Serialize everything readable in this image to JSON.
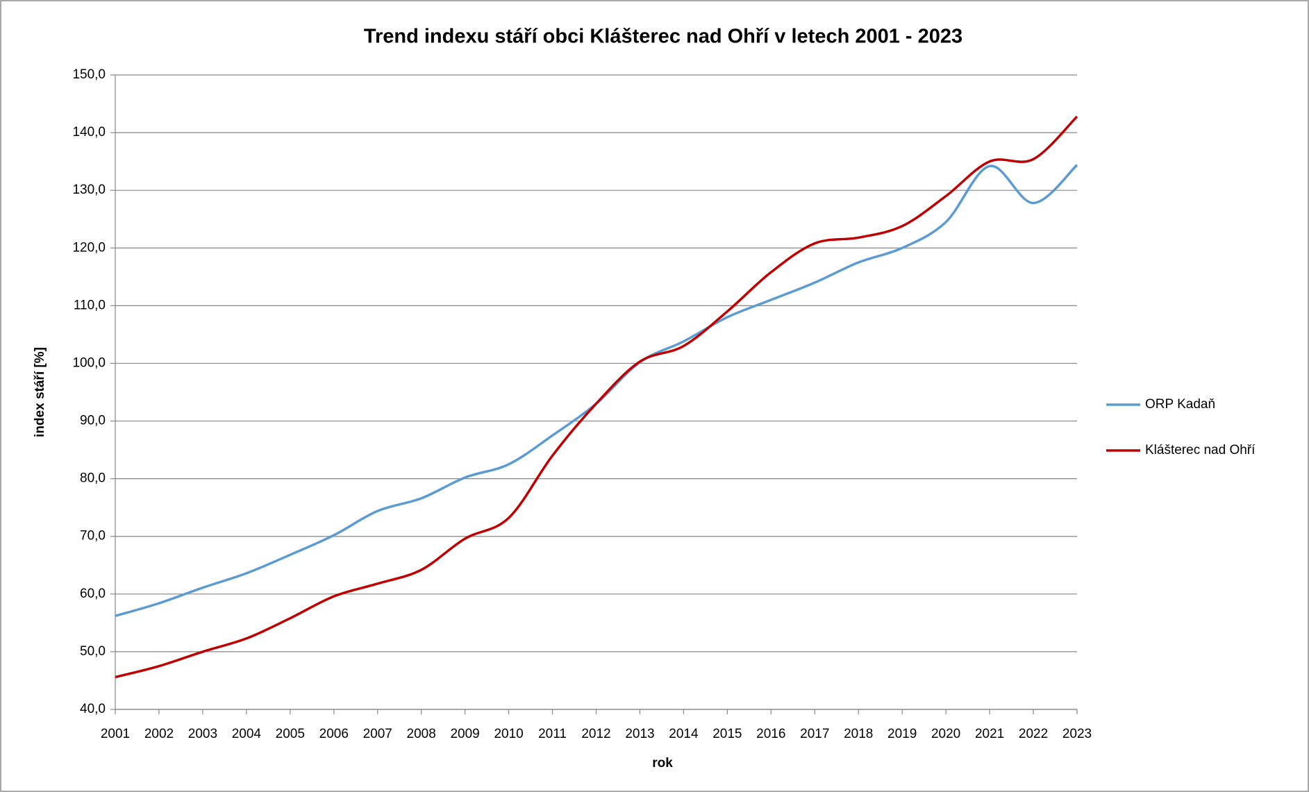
{
  "chart_data": {
    "type": "line",
    "title": "Trend indexu stáří obci Klášterec nad Ohří v letech 2001 - 2023",
    "x_label": "rok",
    "y_label": "index stáří [%]",
    "categories": [
      "2001",
      "2002",
      "2003",
      "2004",
      "2005",
      "2006",
      "2007",
      "2008",
      "2009",
      "2010",
      "2011",
      "2012",
      "2013",
      "2014",
      "2015",
      "2016",
      "2017",
      "2018",
      "2019",
      "2020",
      "2021",
      "2022",
      "2023"
    ],
    "series": [
      {
        "name": "ORP Kadaň",
        "color": "#5b9bd5",
        "values": [
          56.2,
          58.4,
          61.1,
          63.6,
          66.8,
          70.2,
          74.4,
          76.6,
          80.2,
          82.5,
          87.5,
          93.0,
          100.2,
          103.8,
          108.0,
          111.0,
          114.0,
          117.5,
          120.0,
          124.5,
          134.2,
          127.8,
          134.4
        ]
      },
      {
        "name": "Klášterec nad Ohří",
        "color": "#c00000",
        "values": [
          45.6,
          47.5,
          50.0,
          52.3,
          55.8,
          59.6,
          61.8,
          64.2,
          69.6,
          73.2,
          84.0,
          93.0,
          100.3,
          103.0,
          109.0,
          115.8,
          120.8,
          121.8,
          123.8,
          129.0,
          135.0,
          135.4,
          142.8
        ]
      }
    ],
    "ylim": [
      40,
      150
    ],
    "yticks": [
      {
        "value": 40,
        "label": "40,0"
      },
      {
        "value": 50,
        "label": "50,0"
      },
      {
        "value": 60,
        "label": "60,0"
      },
      {
        "value": 70,
        "label": "70,0"
      },
      {
        "value": 80,
        "label": "80,0"
      },
      {
        "value": 90,
        "label": "90,0"
      },
      {
        "value": 100,
        "label": "100,0"
      },
      {
        "value": 110,
        "label": "110,0"
      },
      {
        "value": 120,
        "label": "120,0"
      },
      {
        "value": 130,
        "label": "130,0"
      },
      {
        "value": 140,
        "label": "140,0"
      },
      {
        "value": 150,
        "label": "150,0"
      }
    ],
    "grid": true,
    "legend": "right"
  }
}
